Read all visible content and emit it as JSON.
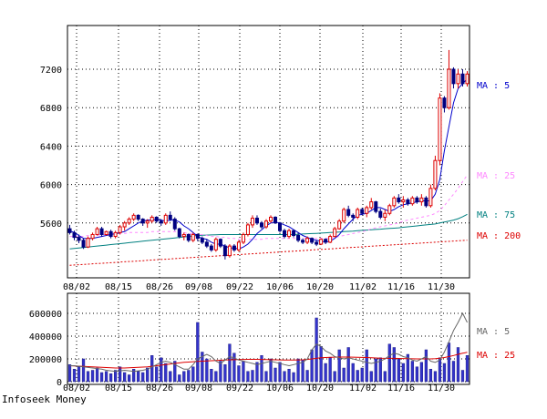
{
  "footer": "Infoseek Money",
  "chart_data": [
    {
      "type": "candlestick",
      "ylim": [
        5200,
        7450
      ],
      "yticks": [
        5600,
        6000,
        6400,
        6800,
        7200
      ],
      "xtick_labels": [
        "08/02",
        "08/15",
        "08/26",
        "09/08",
        "09/22",
        "10/06",
        "10/20",
        "11/02",
        "11/16",
        "11/30"
      ],
      "grid": true,
      "colors": {
        "up": "#dd0000",
        "down": "#000080",
        "ma5": "#0000cc",
        "ma25": "#ff88ff",
        "ma75": "#008080",
        "ma200": "#dd0000"
      },
      "ma_labels": [
        "MA : 5",
        "MA : 25",
        "MA : 75",
        "MA : 200"
      ],
      "candles_ohlc": [
        [
          5540,
          5580,
          5480,
          5500
        ],
        [
          5500,
          5520,
          5420,
          5450
        ],
        [
          5450,
          5480,
          5390,
          5420
        ],
        [
          5420,
          5440,
          5330,
          5350
        ],
        [
          5350,
          5460,
          5340,
          5440
        ],
        [
          5440,
          5500,
          5420,
          5480
        ],
        [
          5480,
          5560,
          5470,
          5540
        ],
        [
          5540,
          5560,
          5460,
          5480
        ],
        [
          5480,
          5520,
          5470,
          5510
        ],
        [
          5510,
          5530,
          5440,
          5460
        ],
        [
          5460,
          5520,
          5440,
          5500
        ],
        [
          5500,
          5580,
          5480,
          5560
        ],
        [
          5560,
          5620,
          5520,
          5600
        ],
        [
          5600,
          5660,
          5580,
          5640
        ],
        [
          5640,
          5700,
          5620,
          5680
        ],
        [
          5680,
          5690,
          5620,
          5640
        ],
        [
          5640,
          5650,
          5570,
          5600
        ],
        [
          5600,
          5640,
          5550,
          5620
        ],
        [
          5620,
          5680,
          5600,
          5660
        ],
        [
          5660,
          5670,
          5600,
          5620
        ],
        [
          5620,
          5640,
          5570,
          5600
        ],
        [
          5600,
          5700,
          5580,
          5680
        ],
        [
          5680,
          5720,
          5620,
          5640
        ],
        [
          5640,
          5660,
          5520,
          5540
        ],
        [
          5540,
          5550,
          5440,
          5460
        ],
        [
          5460,
          5500,
          5420,
          5480
        ],
        [
          5480,
          5490,
          5400,
          5420
        ],
        [
          5420,
          5500,
          5400,
          5480
        ],
        [
          5480,
          5490,
          5410,
          5440
        ],
        [
          5440,
          5460,
          5380,
          5400
        ],
        [
          5400,
          5430,
          5340,
          5360
        ],
        [
          5360,
          5380,
          5300,
          5320
        ],
        [
          5320,
          5450,
          5300,
          5430
        ],
        [
          5430,
          5440,
          5340,
          5360
        ],
        [
          5360,
          5380,
          5220,
          5260
        ],
        [
          5260,
          5380,
          5240,
          5360
        ],
        [
          5360,
          5380,
          5300,
          5320
        ],
        [
          5320,
          5420,
          5300,
          5400
        ],
        [
          5400,
          5500,
          5380,
          5480
        ],
        [
          5480,
          5600,
          5460,
          5580
        ],
        [
          5580,
          5680,
          5550,
          5650
        ],
        [
          5650,
          5680,
          5580,
          5600
        ],
        [
          5600,
          5620,
          5540,
          5560
        ],
        [
          5560,
          5640,
          5540,
          5620
        ],
        [
          5620,
          5680,
          5600,
          5660
        ],
        [
          5660,
          5670,
          5590,
          5600
        ],
        [
          5600,
          5610,
          5500,
          5520
        ],
        [
          5520,
          5540,
          5440,
          5460
        ],
        [
          5460,
          5540,
          5440,
          5520
        ],
        [
          5520,
          5530,
          5450,
          5470
        ],
        [
          5470,
          5500,
          5400,
          5420
        ],
        [
          5420,
          5440,
          5380,
          5400
        ],
        [
          5400,
          5460,
          5380,
          5440
        ],
        [
          5440,
          5450,
          5380,
          5400
        ],
        [
          5400,
          5420,
          5360,
          5380
        ],
        [
          5380,
          5440,
          5370,
          5430
        ],
        [
          5430,
          5440,
          5380,
          5400
        ],
        [
          5400,
          5480,
          5390,
          5460
        ],
        [
          5460,
          5560,
          5450,
          5540
        ],
        [
          5540,
          5640,
          5530,
          5620
        ],
        [
          5620,
          5760,
          5600,
          5740
        ],
        [
          5740,
          5780,
          5660,
          5680
        ],
        [
          5680,
          5700,
          5620,
          5660
        ],
        [
          5660,
          5760,
          5640,
          5740
        ],
        [
          5740,
          5760,
          5680,
          5700
        ],
        [
          5700,
          5780,
          5660,
          5760
        ],
        [
          5760,
          5860,
          5740,
          5820
        ],
        [
          5820,
          5830,
          5700,
          5720
        ],
        [
          5720,
          5750,
          5640,
          5660
        ],
        [
          5660,
          5740,
          5620,
          5700
        ],
        [
          5700,
          5800,
          5680,
          5780
        ],
        [
          5780,
          5880,
          5760,
          5860
        ],
        [
          5860,
          5900,
          5800,
          5820
        ],
        [
          5820,
          5880,
          5760,
          5840
        ],
        [
          5840,
          5860,
          5780,
          5800
        ],
        [
          5800,
          5880,
          5780,
          5860
        ],
        [
          5860,
          5880,
          5800,
          5820
        ],
        [
          5820,
          5900,
          5780,
          5860
        ],
        [
          5860,
          5880,
          5760,
          5780
        ],
        [
          5780,
          6000,
          5760,
          5960
        ],
        [
          5960,
          6300,
          5940,
          6250
        ],
        [
          6250,
          6950,
          6200,
          6900
        ],
        [
          6900,
          6920,
          6750,
          6800
        ],
        [
          6800,
          7400,
          6780,
          7200
        ],
        [
          7200,
          7220,
          7000,
          7050
        ],
        [
          7050,
          7200,
          7000,
          7150
        ],
        [
          7150,
          7200,
          7020,
          7050
        ],
        [
          7050,
          7180,
          7020,
          7150
        ]
      ],
      "ma5": [
        5520,
        5500,
        5470,
        5440,
        5440,
        5440,
        5450,
        5460,
        5470,
        5480,
        5490,
        5500,
        5510,
        5540,
        5570,
        5600,
        5620,
        5630,
        5630,
        5640,
        5630,
        5620,
        5630,
        5630,
        5610,
        5570,
        5540,
        5500,
        5460,
        5440,
        5430,
        5400,
        5380,
        5380,
        5360,
        5340,
        5340,
        5330,
        5350,
        5380,
        5430,
        5490,
        5530,
        5570,
        5600,
        5610,
        5600,
        5580,
        5560,
        5530,
        5500,
        5470,
        5450,
        5430,
        5420,
        5410,
        5400,
        5410,
        5440,
        5480,
        5540,
        5590,
        5640,
        5680,
        5690,
        5700,
        5730,
        5760,
        5760,
        5740,
        5720,
        5740,
        5770,
        5790,
        5800,
        5810,
        5820,
        5830,
        5830,
        5830,
        5900,
        6050,
        6350,
        6600,
        6850,
        7000,
        7050,
        7100
      ],
      "ma25": [
        5460,
        5460,
        5460,
        5460,
        5470,
        5470,
        5470,
        5480,
        5480,
        5480,
        5480,
        5490,
        5490,
        5500,
        5500,
        5500,
        5500,
        5500,
        5510,
        5510,
        5510,
        5510,
        5510,
        5510,
        5500,
        5500,
        5490,
        5490,
        5480,
        5480,
        5470,
        5460,
        5460,
        5450,
        5450,
        5440,
        5440,
        5430,
        5430,
        5430,
        5430,
        5430,
        5430,
        5440,
        5440,
        5440,
        5440,
        5440,
        5440,
        5440,
        5440,
        5440,
        5440,
        5440,
        5440,
        5440,
        5440,
        5440,
        5450,
        5460,
        5470,
        5480,
        5490,
        5500,
        5510,
        5520,
        5540,
        5550,
        5560,
        5570,
        5580,
        5590,
        5600,
        5620,
        5630,
        5640,
        5650,
        5660,
        5670,
        5680,
        5700,
        5730,
        5780,
        5840,
        5900,
        5960,
        6030,
        6100
      ],
      "ma75": [
        5330,
        5335,
        5340,
        5345,
        5350,
        5355,
        5360,
        5365,
        5370,
        5375,
        5380,
        5385,
        5390,
        5395,
        5400,
        5405,
        5410,
        5415,
        5420,
        5425,
        5430,
        5435,
        5440,
        5445,
        5450,
        5455,
        5460,
        5465,
        5470,
        5472,
        5474,
        5476,
        5478,
        5480,
        5480,
        5480,
        5480,
        5480,
        5480,
        5480,
        5480,
        5480,
        5480,
        5480,
        5480,
        5480,
        5480,
        5480,
        5480,
        5480,
        5482,
        5485,
        5488,
        5490,
        5492,
        5495,
        5498,
        5500,
        5503,
        5506,
        5510,
        5513,
        5516,
        5520,
        5523,
        5526,
        5530,
        5533,
        5536,
        5540,
        5543,
        5546,
        5550,
        5555,
        5560,
        5565,
        5570,
        5575,
        5580,
        5585,
        5590,
        5600,
        5610,
        5620,
        5630,
        5645,
        5665,
        5690
      ],
      "ma200": [
        5160,
        5163,
        5166,
        5169,
        5172,
        5175,
        5178,
        5181,
        5184,
        5187,
        5190,
        5193,
        5196,
        5199,
        5202,
        5205,
        5208,
        5211,
        5214,
        5217,
        5220,
        5223,
        5226,
        5229,
        5232,
        5235,
        5238,
        5241,
        5244,
        5247,
        5250,
        5253,
        5256,
        5259,
        5262,
        5265,
        5268,
        5271,
        5274,
        5277,
        5280,
        5283,
        5286,
        5289,
        5292,
        5295,
        5298,
        5301,
        5304,
        5307,
        5310,
        5313,
        5316,
        5319,
        5322,
        5325,
        5328,
        5331,
        5334,
        5337,
        5340,
        5343,
        5346,
        5349,
        5352,
        5355,
        5358,
        5361,
        5364,
        5367,
        5370,
        5373,
        5376,
        5379,
        5382,
        5385,
        5388,
        5391,
        5394,
        5397,
        5400,
        5403,
        5406,
        5409,
        5412,
        5415,
        5418,
        5421
      ]
    },
    {
      "type": "bar",
      "ylim": [
        0,
        700000
      ],
      "yticks": [
        0,
        200000,
        400000,
        600000
      ],
      "ytick_labels": [
        "0",
        "200000",
        "400000",
        "600000"
      ],
      "xtick_labels": [
        "08/02",
        "08/15",
        "08/26",
        "09/08",
        "09/22",
        "10/06",
        "10/20",
        "11/02",
        "11/16",
        "11/30"
      ],
      "colors": {
        "bar": "#3333cc",
        "ma5": "#666666",
        "ma25": "#dd0000"
      },
      "ma_labels": [
        "MA : 5",
        "MA : 25"
      ],
      "volume": [
        150000,
        110000,
        130000,
        200000,
        90000,
        100000,
        120000,
        80000,
        90000,
        70000,
        100000,
        130000,
        80000,
        60000,
        110000,
        90000,
        80000,
        120000,
        230000,
        130000,
        210000,
        160000,
        90000,
        180000,
        60000,
        90000,
        100000,
        130000,
        520000,
        260000,
        200000,
        110000,
        90000,
        180000,
        150000,
        330000,
        250000,
        140000,
        180000,
        90000,
        100000,
        170000,
        230000,
        90000,
        200000,
        120000,
        170000,
        90000,
        110000,
        80000,
        200000,
        190000,
        100000,
        280000,
        560000,
        310000,
        160000,
        210000,
        90000,
        280000,
        120000,
        300000,
        160000,
        100000,
        120000,
        280000,
        90000,
        200000,
        210000,
        90000,
        330000,
        300000,
        200000,
        160000,
        240000,
        180000,
        130000,
        170000,
        280000,
        110000,
        90000,
        210000,
        160000,
        340000,
        180000,
        300000,
        100000,
        230000
      ],
      "ma5": [
        140000,
        140000,
        135000,
        130000,
        125000,
        120000,
        115000,
        110000,
        100000,
        95000,
        90000,
        95000,
        100000,
        95000,
        90000,
        95000,
        100000,
        110000,
        130000,
        150000,
        170000,
        180000,
        170000,
        150000,
        130000,
        110000,
        110000,
        150000,
        200000,
        220000,
        240000,
        220000,
        180000,
        160000,
        190000,
        220000,
        210000,
        190000,
        180000,
        170000,
        160000,
        150000,
        160000,
        170000,
        180000,
        170000,
        160000,
        150000,
        140000,
        150000,
        160000,
        170000,
        200000,
        280000,
        330000,
        310000,
        270000,
        250000,
        220000,
        210000,
        200000,
        210000,
        200000,
        190000,
        180000,
        170000,
        160000,
        170000,
        180000,
        200000,
        230000,
        250000,
        240000,
        220000,
        210000,
        190000,
        180000,
        200000,
        220000,
        180000,
        170000,
        190000,
        260000,
        350000,
        450000,
        520000,
        600000,
        520000
      ],
      "ma25": [
        140000,
        138000,
        136000,
        134000,
        132000,
        130000,
        128000,
        126000,
        124000,
        122000,
        120000,
        120000,
        120000,
        122000,
        124000,
        126000,
        128000,
        130000,
        135000,
        140000,
        145000,
        150000,
        155000,
        160000,
        165000,
        170000,
        172000,
        175000,
        178000,
        180000,
        182000,
        184000,
        186000,
        188000,
        190000,
        192000,
        193000,
        194000,
        195000,
        196000,
        196000,
        196000,
        195000,
        194000,
        193000,
        192000,
        191000,
        190000,
        190000,
        190000,
        191000,
        192000,
        195000,
        200000,
        205000,
        210000,
        212000,
        214000,
        215000,
        216000,
        216000,
        216000,
        215000,
        214000,
        213000,
        212000,
        210000,
        208000,
        206000,
        205000,
        205000,
        205000,
        204000,
        203000,
        202000,
        201000,
        200000,
        200000,
        200000,
        200000,
        202000,
        206000,
        212000,
        220000,
        230000,
        240000,
        250000,
        258000
      ]
    }
  ]
}
